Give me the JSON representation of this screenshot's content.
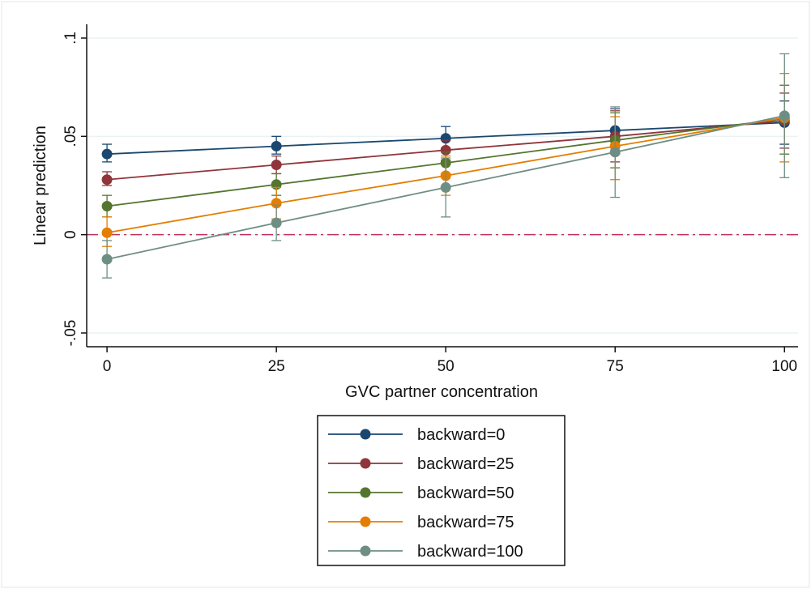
{
  "chart_data": {
    "type": "line",
    "xlabel": "GVC partner concentration",
    "ylabel": "Linear prediction",
    "x": [
      0,
      25,
      50,
      75,
      100
    ],
    "xlim": [
      -3,
      102
    ],
    "ylim": [
      -0.057,
      0.107
    ],
    "x_ticks": [
      0,
      25,
      50,
      75,
      100
    ],
    "x_tick_labels": [
      "0",
      "25",
      "50",
      "75",
      "100"
    ],
    "y_ticks": [
      -0.05,
      0,
      0.05,
      0.1
    ],
    "y_tick_labels": [
      "-.05",
      "0",
      ".05",
      ".1"
    ],
    "grid": true,
    "legend_position": "bottom",
    "reference_line": {
      "y": 0,
      "style": "dash-dot",
      "color": "#c0325a"
    },
    "series": [
      {
        "name": "backward=0",
        "color": "#1a476f",
        "values": [
          0.041,
          0.045,
          0.049,
          0.053,
          0.057
        ],
        "ci_low": [
          0.037,
          0.041,
          0.044,
          0.041,
          0.046
        ],
        "ci_high": [
          0.046,
          0.05,
          0.055,
          0.064,
          0.068
        ]
      },
      {
        "name": "backward=25",
        "color": "#90353b",
        "values": [
          0.028,
          0.0355,
          0.043,
          0.05,
          0.058
        ],
        "ci_low": [
          0.025,
          0.031,
          0.038,
          0.037,
          0.044
        ],
        "ci_high": [
          0.032,
          0.04,
          0.048,
          0.063,
          0.072
        ]
      },
      {
        "name": "backward=50",
        "color": "#55752f",
        "values": [
          0.0145,
          0.0255,
          0.0365,
          0.048,
          0.059
        ],
        "ci_low": [
          0.009,
          0.02,
          0.031,
          0.034,
          0.041
        ],
        "ci_high": [
          0.02,
          0.031,
          0.042,
          0.062,
          0.076
        ]
      },
      {
        "name": "backward=75",
        "color": "#e37e00",
        "values": [
          0.001,
          0.016,
          0.03,
          0.045,
          0.0595
        ],
        "ci_low": [
          -0.006,
          0.008,
          0.02,
          0.028,
          0.037
        ],
        "ci_high": [
          0.009,
          0.024,
          0.04,
          0.06,
          0.082
        ]
      },
      {
        "name": "backward=100",
        "color": "#6e8e84",
        "values": [
          -0.0125,
          0.006,
          0.024,
          0.042,
          0.0605
        ],
        "ci_low": [
          -0.022,
          -0.003,
          0.009,
          0.019,
          0.029
        ],
        "ci_high": [
          -0.003,
          0.015,
          0.039,
          0.065,
          0.092
        ]
      }
    ]
  }
}
